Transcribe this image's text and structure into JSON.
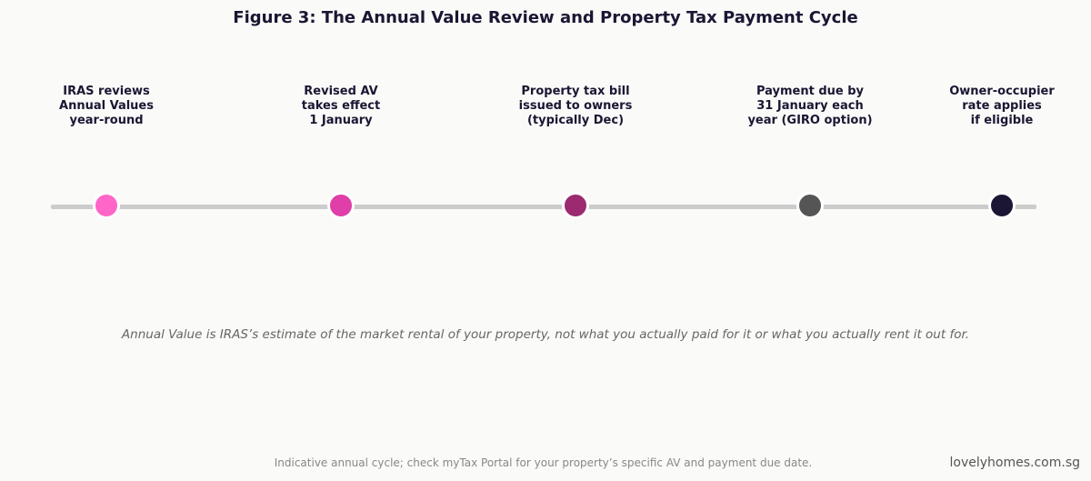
{
  "title": "Figure 3: The Annual Value Review and Property Tax Payment Cycle",
  "steps": [
    {
      "label": "IRAS reviews\nAnnual Values\nyear-round",
      "color": "#ff66c8"
    },
    {
      "label": "Revised AV\ntakes effect\n1 January",
      "color": "#e03ea8"
    },
    {
      "label": "Property tax bill\nissued to owners\n(typically Dec)",
      "color": "#9b2a70"
    },
    {
      "label": "Payment due by\n31 January each\nyear (GIRO option)",
      "color": "#555555"
    },
    {
      "label": "Owner-occupier\nrate applies\nif eligible",
      "color": "#1a1633"
    }
  ],
  "note": "Annual Value is IRAS’s estimate of the market rental of your property, not what you actually paid for it or what you actually rent it out for.",
  "footnote": "Indicative annual cycle; check myTax Portal for your property’s specific AV and payment due date.",
  "brand": "lovelyhomes.com.sg"
}
